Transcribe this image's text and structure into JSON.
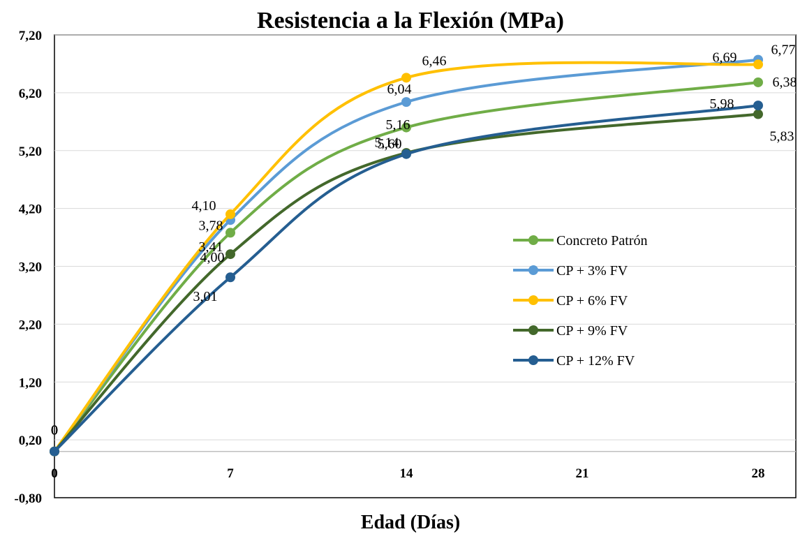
{
  "chart_data": {
    "type": "line",
    "title": "Resistencia a la Flexión (MPa)",
    "xlabel": "Edad (Días)",
    "ylabel": "",
    "x": [
      0,
      7,
      14,
      28
    ],
    "x_ticks": [
      0,
      7,
      14,
      21,
      28
    ],
    "x_tick_labels": [
      "0",
      "7",
      "14",
      "21",
      "28"
    ],
    "xlim": [
      0,
      29.5
    ],
    "ylim": [
      -0.8,
      7.2
    ],
    "y_ticks": [
      -0.8,
      0.2,
      1.2,
      2.2,
      3.2,
      4.2,
      5.2,
      6.2,
      7.2
    ],
    "y_tick_labels": [
      "-0,80",
      "0,20",
      "1,20",
      "2,20",
      "3,20",
      "4,20",
      "5,20",
      "6,20",
      "7,20"
    ],
    "grid": "horizontal",
    "legend_position": "center-right",
    "smooth": true,
    "series": [
      {
        "name": "Concreto Patrón",
        "values": [
          0,
          3.78,
          5.6,
          6.38
        ],
        "color": "#70AD47",
        "labels": [
          "0",
          "3,78",
          "5,60",
          "6,38"
        ]
      },
      {
        "name": "CP + 3% FV",
        "values": [
          0,
          4.0,
          6.04,
          6.77
        ],
        "color": "#5B9BD5",
        "labels": [
          "0",
          "4,00",
          "6,04",
          "6,77"
        ]
      },
      {
        "name": "CP + 6% FV",
        "values": [
          0,
          4.1,
          6.46,
          6.69
        ],
        "color": "#FFC000",
        "labels": [
          "0",
          "4,10",
          "6,46",
          "6,69"
        ]
      },
      {
        "name": "CP + 9% FV",
        "values": [
          0,
          3.41,
          5.16,
          5.83
        ],
        "color": "#43682B",
        "labels": [
          "0",
          "3,41",
          "5,16",
          "5,83"
        ]
      },
      {
        "name": "CP + 12% FV",
        "values": [
          0,
          3.01,
          5.14,
          5.98
        ],
        "color": "#255E91",
        "labels": [
          "0",
          "3,01",
          "5,14",
          "5,98"
        ]
      }
    ]
  }
}
